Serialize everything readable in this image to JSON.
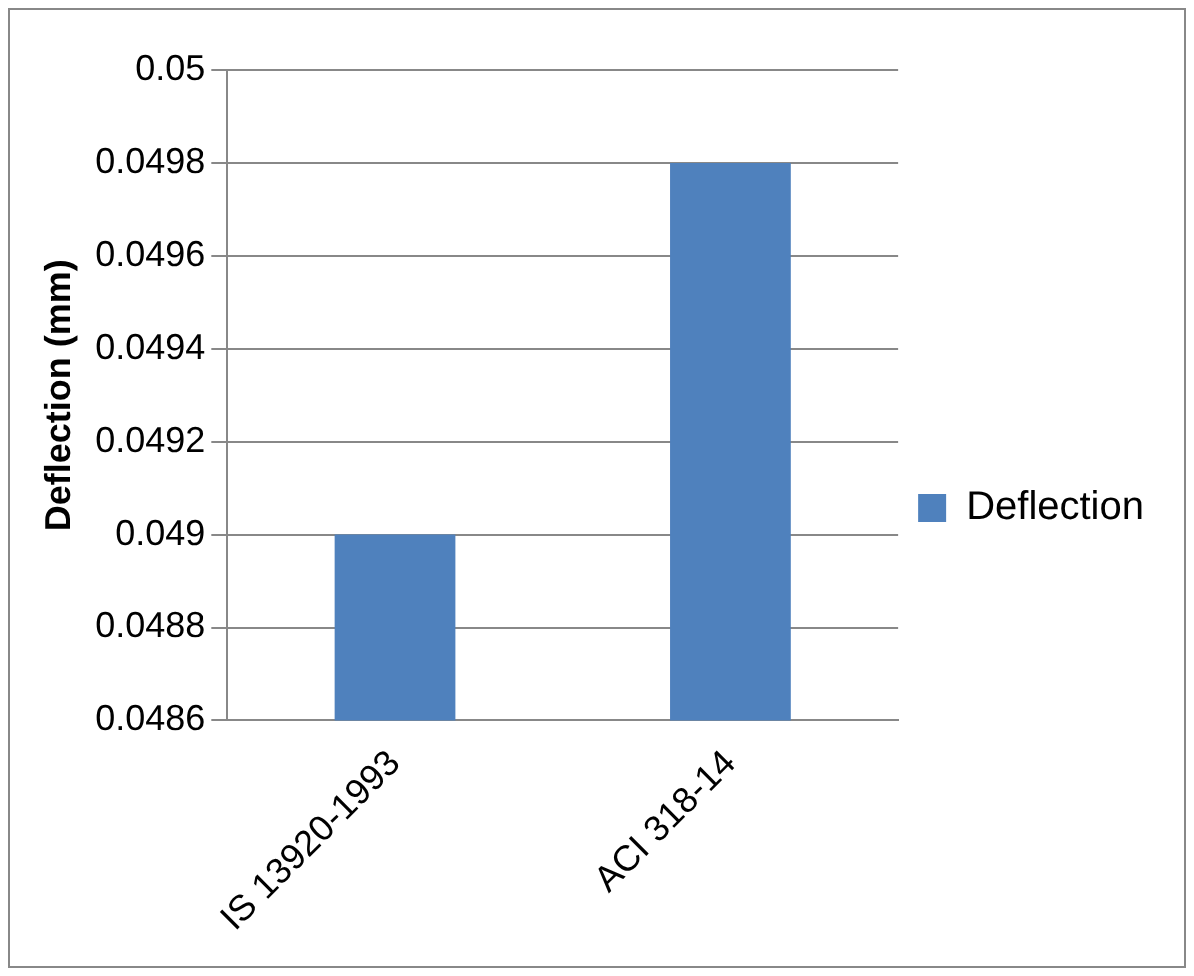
{
  "chart_data": {
    "type": "bar",
    "ylabel": "Deflection (mm)",
    "categories": [
      "IS 13920-1993",
      "ACI 318-14"
    ],
    "series": [
      {
        "name": "Deflection",
        "color": "#4f81bd",
        "values": [
          0.049,
          0.0498
        ]
      }
    ],
    "ylim": [
      0.0486,
      0.05
    ],
    "yticks": [
      0.0486,
      0.0488,
      0.049,
      0.0492,
      0.0494,
      0.0496,
      0.0498,
      0.05
    ],
    "grid": "y",
    "legend": "right"
  }
}
